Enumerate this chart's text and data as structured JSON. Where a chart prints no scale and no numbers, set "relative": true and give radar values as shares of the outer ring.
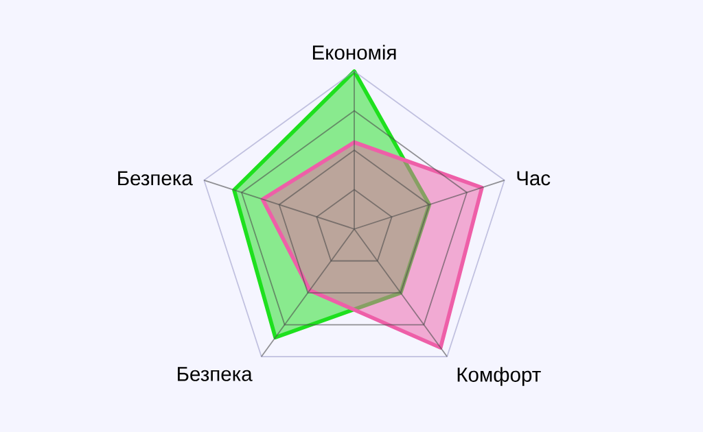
{
  "chart_data": {
    "type": "radar",
    "relative": true,
    "grid": true,
    "categories": [
      "Економія",
      "Час",
      "Комфорт",
      "Безпека",
      "Безпека"
    ],
    "series": [
      {
        "color": "#1ee01e",
        "values": [
          1.0,
          0.5,
          0.5,
          0.85,
          0.8
        ]
      },
      {
        "color": "#ee5fa8",
        "values": [
          0.55,
          0.85,
          0.93,
          0.48,
          0.61
        ]
      }
    ]
  }
}
